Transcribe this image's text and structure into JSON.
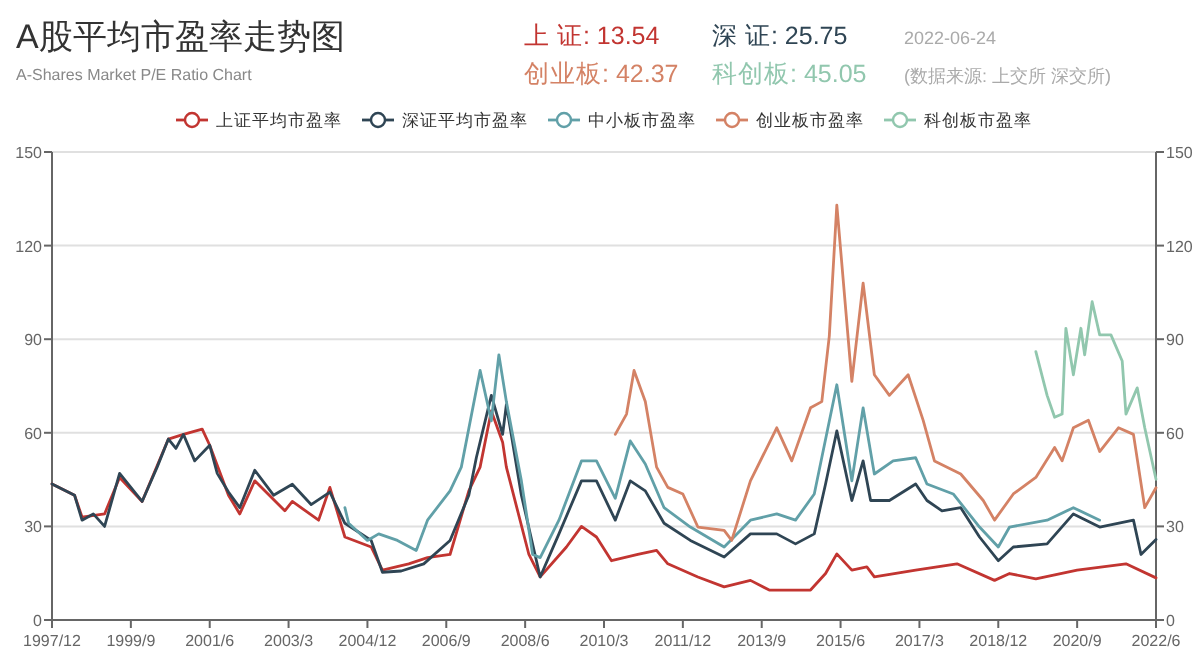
{
  "chart_data": {
    "type": "line",
    "title": "A股平均市盈率走势图",
    "subtitle": "A-Shares Market P/E Ratio Chart",
    "annotations": [
      "上 证: 13.54",
      "深 证: 25.75",
      "2022-06-24",
      "创业板: 42.37",
      "科创板: 45.05",
      "(数据来源: 上交所 深交所)"
    ],
    "xlim": [
      "1997-12",
      "2022-06"
    ],
    "xticks": [
      {
        "value": "1997-12",
        "label": "1997/12"
      },
      {
        "value": "1999-09",
        "label": "1999/9"
      },
      {
        "value": "2001-06",
        "label": "2001/6"
      },
      {
        "value": "2003-03",
        "label": "2003/3"
      },
      {
        "value": "2004-12",
        "label": "2004/12"
      },
      {
        "value": "2006-09",
        "label": "2006/9"
      },
      {
        "value": "2008-06",
        "label": "2008/6"
      },
      {
        "value": "2010-03",
        "label": "2010/3"
      },
      {
        "value": "2011-12",
        "label": "2011/12"
      },
      {
        "value": "2013-09",
        "label": "2013/9"
      },
      {
        "value": "2015-06",
        "label": "2015/6"
      },
      {
        "value": "2017-03",
        "label": "2017/3"
      },
      {
        "value": "2018-12",
        "label": "2018/12"
      },
      {
        "value": "2020-09",
        "label": "2020/9"
      },
      {
        "value": "2022-06",
        "label": "2022/6"
      }
    ],
    "ylim": [
      0,
      150
    ],
    "yticks": [
      0,
      30,
      60,
      90,
      120,
      150
    ],
    "y2lim": [
      0,
      150
    ],
    "y2ticks": [
      0,
      30,
      60,
      90,
      120,
      150
    ],
    "grid": "y",
    "legend": "top",
    "series": [
      {
        "name": "上证平均市盈率",
        "color": "#c23531",
        "x": [
          "1997-12",
          "1998-06",
          "1998-08",
          "1999-02",
          "1999-06",
          "1999-12",
          "2000-07",
          "2000-11",
          "2001-04",
          "2001-06",
          "2001-11",
          "2002-02",
          "2002-06",
          "2003-02",
          "2003-04",
          "2003-11",
          "2004-02",
          "2004-06",
          "2005-01",
          "2005-04",
          "2005-11",
          "2006-04",
          "2006-10",
          "2007-03",
          "2007-06",
          "2007-09",
          "2007-12",
          "2008-01",
          "2008-07",
          "2008-10",
          "2009-05",
          "2009-09",
          "2010-01",
          "2010-05",
          "2010-12",
          "2011-05",
          "2011-08",
          "2012-04",
          "2012-11",
          "2013-06",
          "2013-11",
          "2014-10",
          "2015-02",
          "2015-05",
          "2015-09",
          "2016-01",
          "2016-03",
          "2017-02",
          "2018-01",
          "2018-11",
          "2019-03",
          "2019-10",
          "2020-09",
          "2021-10",
          "2022-06"
        ],
        "values": [
          43.6,
          40,
          33,
          34,
          45.7,
          38,
          58,
          59.5,
          61.2,
          56,
          40,
          34,
          44.6,
          35,
          38,
          32,
          42.5,
          26.6,
          23.4,
          16,
          18,
          20,
          21,
          41.4,
          49,
          67,
          57,
          49,
          21,
          13.8,
          23.4,
          30,
          26.6,
          19,
          21,
          22.3,
          18,
          13.8,
          10.6,
          12.7,
          9.6,
          9.6,
          14.9,
          21.2,
          16,
          17,
          13.8,
          16,
          18,
          12.7,
          14.9,
          13.2,
          16,
          18,
          13.5
        ]
      },
      {
        "name": "深证平均市盈率",
        "color": "#2f4554",
        "x": [
          "1997-12",
          "1998-06",
          "1998-08",
          "1998-11",
          "1999-02",
          "1999-06",
          "1999-12",
          "2000-04",
          "2000-07",
          "2000-09",
          "2000-11",
          "2001-02",
          "2001-06",
          "2001-08",
          "2001-11",
          "2002-02",
          "2002-06",
          "2002-11",
          "2003-04",
          "2003-09",
          "2004-02",
          "2004-06",
          "2005-01",
          "2005-04",
          "2005-09",
          "2006-03",
          "2006-10",
          "2007-03",
          "2007-05",
          "2007-09",
          "2007-12",
          "2008-01",
          "2008-05",
          "2008-10",
          "2009-03",
          "2009-09",
          "2010-01",
          "2010-06",
          "2010-10",
          "2011-02",
          "2011-07",
          "2012-02",
          "2012-11",
          "2013-06",
          "2014-01",
          "2014-06",
          "2014-11",
          "2015-02",
          "2015-05",
          "2015-09",
          "2015-12",
          "2016-02",
          "2016-07",
          "2017-02",
          "2017-05",
          "2017-09",
          "2018-02",
          "2018-07",
          "2018-12",
          "2019-04",
          "2020-01",
          "2020-08",
          "2021-03",
          "2021-12",
          "2022-02",
          "2022-06"
        ],
        "values": [
          43.6,
          40,
          32,
          34,
          30,
          47,
          38,
          49,
          58,
          55,
          59.5,
          51,
          56,
          47,
          41,
          36,
          48,
          40,
          43.5,
          37,
          41,
          31,
          25.5,
          15.3,
          15.7,
          18,
          25.5,
          40,
          52,
          72,
          59.5,
          69,
          40,
          13.8,
          27.6,
          44.6,
          44.6,
          32,
          44.6,
          41.4,
          31,
          25.5,
          20.2,
          27.6,
          27.6,
          24.4,
          27.6,
          43.6,
          60.6,
          38.3,
          51,
          38.3,
          38.3,
          43.6,
          38.3,
          35,
          36,
          26.6,
          19,
          23.4,
          24.4,
          34,
          29.8,
          32,
          21,
          25.8
        ]
      },
      {
        "name": "中小板市盈率",
        "color": "#61a0a8",
        "x": [
          "2004-06",
          "2004-07",
          "2004-12",
          "2005-03",
          "2005-08",
          "2006-01",
          "2006-04",
          "2006-10",
          "2007-01",
          "2007-06",
          "2007-09",
          "2007-11",
          "2008-01",
          "2008-05",
          "2008-08",
          "2008-10",
          "2009-03",
          "2009-09",
          "2010-01",
          "2010-06",
          "2010-10",
          "2011-02",
          "2011-07",
          "2012-02",
          "2012-11",
          "2013-06",
          "2014-01",
          "2014-06",
          "2014-11",
          "2015-05",
          "2015-09",
          "2015-12",
          "2016-03",
          "2016-08",
          "2017-02",
          "2017-05",
          "2017-12",
          "2018-07",
          "2018-12",
          "2019-03",
          "2020-01",
          "2020-08",
          "2021-03"
        ],
        "values": [
          36,
          31,
          25.5,
          27.6,
          25.5,
          22.3,
          32,
          41.4,
          49,
          80,
          63.8,
          85,
          70,
          44.6,
          21,
          20,
          32,
          51,
          51,
          39,
          57.4,
          50,
          36,
          29.8,
          23.4,
          32,
          34,
          32,
          40.4,
          75.4,
          44.6,
          68,
          46.8,
          51,
          52,
          43.6,
          40.4,
          29.8,
          23.4,
          29.8,
          32,
          36,
          32
        ]
      },
      {
        "name": "创业板市盈率",
        "color": "#d48265",
        "x": [
          "2010-06",
          "2010-09",
          "2010-11",
          "2011-02",
          "2011-05",
          "2011-08",
          "2011-12",
          "2012-04",
          "2012-11",
          "2013-01",
          "2013-06",
          "2014-01",
          "2014-05",
          "2014-10",
          "2015-01",
          "2015-03",
          "2015-05",
          "2015-09",
          "2015-12",
          "2016-03",
          "2016-07",
          "2016-12",
          "2017-04",
          "2017-07",
          "2018-02",
          "2018-08",
          "2018-11",
          "2019-04",
          "2019-10",
          "2020-03",
          "2020-05",
          "2020-08",
          "2020-12",
          "2021-03",
          "2021-08",
          "2021-12",
          "2022-03",
          "2022-06"
        ],
        "values": [
          59.5,
          66,
          80,
          70,
          49,
          42.5,
          40.4,
          29.8,
          28.7,
          25.5,
          44.6,
          61.6,
          51,
          68,
          70,
          91,
          133,
          76.5,
          108,
          78.6,
          72,
          78.6,
          64,
          51,
          46.8,
          38.3,
          32,
          40.4,
          45.7,
          55.3,
          51,
          61.6,
          64,
          54,
          61.6,
          59.5,
          36,
          42.4
        ]
      },
      {
        "name": "科创板市盈率",
        "color": "#91c7ae",
        "x": [
          "2019-10",
          "2020-01",
          "2020-03",
          "2020-05",
          "2020-06",
          "2020-08",
          "2020-10",
          "2020-11",
          "2021-01",
          "2021-03",
          "2021-06",
          "2021-09",
          "2021-10",
          "2022-01",
          "2022-03",
          "2022-06"
        ],
        "values": [
          86,
          72,
          65,
          66,
          93.5,
          78.6,
          93.5,
          85,
          102,
          91.4,
          91.4,
          83,
          66,
          74.4,
          61.6,
          45.1
        ]
      }
    ]
  }
}
